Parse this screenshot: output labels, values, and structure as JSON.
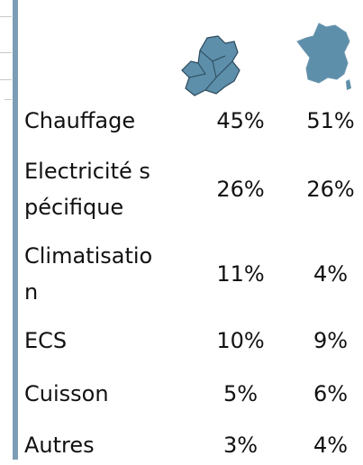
{
  "table": {
    "rows": [
      [
        "Chauffage",
        "45%",
        "51%"
      ],
      [
        "Electricité spécifique",
        "26%",
        "26%"
      ],
      [
        "Climatisation",
        "11%",
        "4%"
      ],
      [
        "ECS",
        "10%",
        "9%"
      ],
      [
        "Cuisson",
        "5%",
        "6%"
      ],
      [
        "Autres",
        "3%",
        "4%"
      ]
    ]
  }
}
